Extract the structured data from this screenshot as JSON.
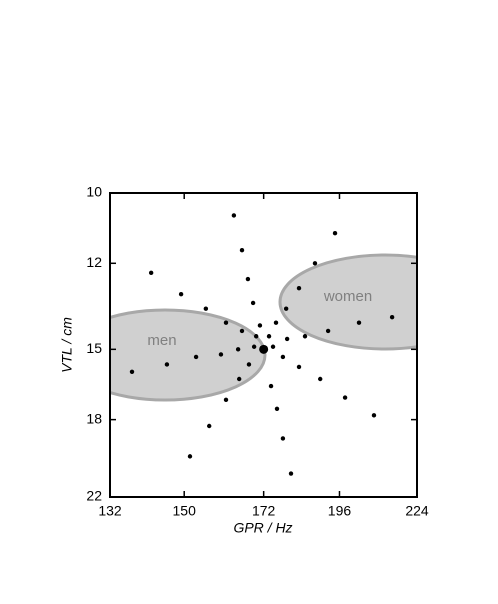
{
  "chart_data": {
    "type": "scatter",
    "xlabel": "GPR / Hz",
    "ylabel": "VTL / cm",
    "xscale": "log",
    "yscale": "log",
    "y_inverted": true,
    "xlim": [
      132,
      224
    ],
    "xticks": [
      132,
      150,
      172,
      196,
      224
    ],
    "ylim": [
      10,
      22
    ],
    "yticks": [
      10,
      12,
      15,
      18,
      22
    ],
    "color": "#000000",
    "regions": [
      {
        "label": "men"
      },
      {
        "label": "women"
      }
    ],
    "center": {
      "x": 172,
      "y": 15
    },
    "x": [
      163.4,
      165.7,
      194.5,
      141.7,
      167.4,
      187.9,
      149.2,
      182.8,
      168.9,
      155.7,
      178.8,
      161.2,
      175.7,
      165.7,
      169.8,
      173.6,
      170.9,
      169.2,
      174.8,
      179.1,
      184.7,
      202.7,
      214.6,
      192.2,
      164.6,
      159.8,
      153.1,
      145.6,
      167.7,
      177.8,
      182.8,
      137.1,
      164.9,
      174.2,
      189.6,
      161.2,
      176.0,
      197.9,
      156.6,
      177.8,
      208.0,
      151.5,
      180.3
    ],
    "y": [
      10.6,
      11.6,
      11.1,
      12.3,
      12.5,
      12.0,
      13.0,
      12.8,
      13.3,
      13.5,
      13.5,
      14.0,
      14.0,
      14.3,
      14.5,
      14.5,
      14.1,
      14.9,
      14.9,
      14.6,
      14.5,
      14.0,
      13.8,
      14.3,
      15.0,
      15.2,
      15.3,
      15.6,
      15.6,
      15.3,
      15.7,
      15.9,
      16.2,
      16.5,
      16.2,
      17.1,
      17.5,
      17.0,
      18.3,
      18.9,
      17.8,
      19.8,
      20.7
    ]
  }
}
